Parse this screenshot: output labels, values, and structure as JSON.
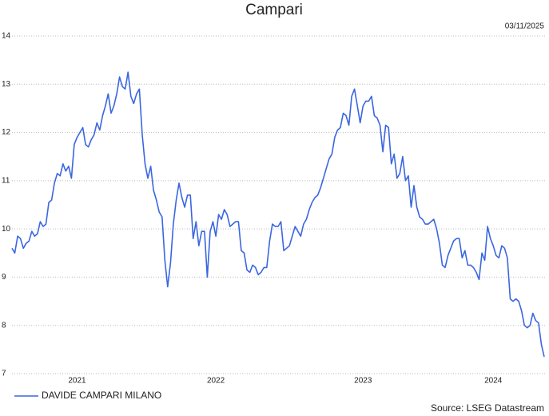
{
  "chart_data": {
    "type": "line",
    "title": "Campari",
    "date": "03/11/2025",
    "source": "Source: LSEG Datastream",
    "categories": [
      null,
      null,
      null,
      null,
      null,
      null,
      null,
      null,
      null,
      null,
      null,
      null,
      null,
      null,
      null,
      null,
      null,
      null,
      null,
      null,
      null,
      null,
      null,
      "2021",
      null,
      null,
      null,
      null,
      null,
      null,
      null,
      null,
      null,
      null,
      null,
      null,
      null,
      null,
      null,
      null,
      null,
      null,
      null,
      null,
      null,
      null,
      null,
      null,
      null,
      null,
      null,
      null,
      null,
      null,
      null,
      null,
      null,
      null,
      null,
      null,
      null,
      null,
      null,
      null,
      null,
      null,
      null,
      null,
      null,
      null,
      null,
      null,
      "2022",
      null,
      null,
      null,
      null,
      null,
      null,
      null,
      null,
      null,
      null,
      null,
      null,
      null,
      null,
      null,
      null,
      null,
      null,
      null,
      null,
      null,
      null,
      null,
      null,
      null,
      null,
      null,
      null,
      null,
      null,
      null,
      null,
      null,
      null,
      null,
      null,
      null,
      null,
      null,
      null,
      null,
      null,
      null,
      null,
      null,
      null,
      null,
      null,
      null,
      null,
      null,
      "2023",
      null,
      null,
      null,
      null,
      null,
      null,
      null,
      null,
      null,
      null,
      null,
      null,
      null,
      null,
      null,
      null,
      null,
      null,
      null,
      null,
      null,
      null,
      null,
      null,
      null,
      null,
      null,
      null,
      null,
      null,
      null,
      null,
      null,
      null,
      null,
      null,
      null,
      null,
      null,
      null,
      null,
      null,
      null,
      null,
      null,
      "2024",
      null,
      null,
      null,
      null,
      null,
      null,
      null,
      null,
      null,
      null,
      null,
      null,
      null,
      null,
      null,
      null,
      null,
      null
    ],
    "series": [
      {
        "name": "DAVIDE CAMPARI MILANO",
        "color": "#3a66e0",
        "values": [
          9.6,
          9.5,
          9.85,
          9.8,
          9.6,
          9.7,
          9.75,
          9.95,
          9.85,
          9.9,
          10.15,
          10.05,
          10.1,
          10.55,
          10.6,
          10.95,
          11.15,
          11.1,
          11.35,
          11.2,
          11.3,
          11.05,
          11.75,
          11.9,
          12.0,
          12.1,
          11.75,
          11.7,
          11.85,
          11.95,
          12.2,
          12.05,
          12.35,
          12.55,
          12.8,
          12.4,
          12.55,
          12.8,
          13.15,
          12.95,
          12.9,
          13.25,
          12.75,
          12.6,
          12.8,
          12.9,
          11.95,
          11.35,
          11.05,
          11.3,
          10.8,
          10.6,
          10.35,
          10.25,
          9.35,
          8.8,
          9.3,
          10.1,
          10.6,
          10.95,
          10.65,
          10.45,
          10.7,
          10.7,
          9.8,
          10.15,
          9.65,
          9.95,
          9.95,
          9.0,
          9.95,
          10.15,
          9.85,
          10.3,
          10.2,
          10.4,
          10.3,
          10.05,
          10.1,
          10.15,
          10.15,
          9.55,
          9.5,
          9.15,
          9.1,
          9.25,
          9.2,
          9.05,
          9.1,
          9.2,
          9.2,
          9.75,
          10.1,
          10.05,
          10.05,
          10.15,
          9.55,
          9.6,
          9.65,
          9.85,
          10.05,
          9.95,
          9.85,
          10.1,
          10.2,
          10.4,
          10.55,
          10.65,
          10.7,
          10.85,
          11.05,
          11.25,
          11.45,
          11.55,
          11.9,
          12.05,
          12.1,
          12.4,
          12.35,
          12.15,
          12.75,
          12.9,
          12.55,
          12.2,
          12.55,
          12.65,
          12.65,
          12.75,
          12.35,
          12.3,
          12.15,
          11.6,
          12.15,
          12.1,
          11.35,
          11.55,
          11.05,
          11.15,
          11.5,
          11.0,
          11.1,
          10.45,
          10.9,
          10.45,
          10.25,
          10.2,
          10.1,
          10.1,
          10.15,
          10.2,
          10.0,
          9.7,
          9.25,
          9.2,
          9.45,
          9.6,
          9.75,
          9.8,
          9.8,
          9.4,
          9.55,
          9.25,
          9.25,
          9.2,
          9.1,
          8.95,
          9.5,
          9.35,
          10.05,
          9.8,
          9.65,
          9.45,
          9.4,
          9.65,
          9.6,
          9.4,
          8.55,
          8.5,
          8.55,
          8.5,
          8.3,
          8.0,
          7.95,
          8.0,
          8.25,
          8.1,
          8.05,
          7.6,
          7.35
        ]
      }
    ],
    "ylim": [
      7,
      14
    ],
    "yticks": [
      7,
      8,
      9,
      10,
      11,
      12,
      13,
      14
    ],
    "grid": true
  }
}
